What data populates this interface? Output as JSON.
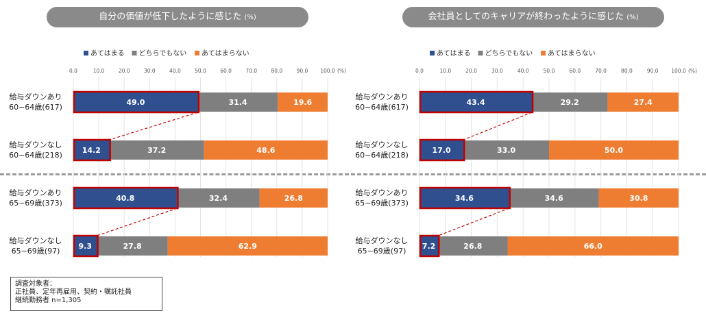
{
  "colors": {
    "agree": "#2f4f8f",
    "neutral": "#7f7f7f",
    "disagree": "#ef7d31",
    "highlight": "#c00000",
    "pill": "#8a8a8a"
  },
  "legend": [
    "あてはまる",
    "どちらでもない",
    "あてはまらない"
  ],
  "axis": {
    "ticks": [
      "0.0",
      "10.0",
      "20.0",
      "30.0",
      "40.0",
      "50.0",
      "60.0",
      "70.0",
      "80.0",
      "90.0",
      "100.0"
    ],
    "unit": "(%)"
  },
  "note": {
    "lines": [
      "調査対象者：",
      "正社員、定年再雇用、契約・嘱託社員",
      "継続勤務者 n=1,305"
    ]
  },
  "chart_data": [
    {
      "type": "bar",
      "stacked": true,
      "orientation": "horizontal",
      "title": "自分の価値が低下したように感じた",
      "title_unit": "(%)",
      "xlim": [
        0,
        100
      ],
      "categories": [
        [
          "給与ダウンあり",
          "60−64歳(617)"
        ],
        [
          "給与ダウンなし",
          "60−64歳(218)"
        ],
        [
          "給与ダウンあり",
          "65−69歳(373)"
        ],
        [
          "給与ダウンなし",
          "65−69歳(97)"
        ]
      ],
      "series": [
        {
          "name": "あてはまる",
          "values": [
            49.0,
            14.2,
            40.8,
            9.3
          ]
        },
        {
          "name": "どちらでもない",
          "values": [
            31.4,
            37.2,
            32.4,
            27.8
          ]
        },
        {
          "name": "あてはまらない",
          "values": [
            19.6,
            48.6,
            26.8,
            62.9
          ]
        }
      ],
      "labels": [
        [
          "49.0",
          "31.4",
          "19.6"
        ],
        [
          "14.2",
          "37.2",
          "48.6"
        ],
        [
          "40.8",
          "32.4",
          "26.8"
        ],
        [
          "9.3",
          "27.8",
          "62.9"
        ]
      ],
      "legend_position": "top"
    },
    {
      "type": "bar",
      "stacked": true,
      "orientation": "horizontal",
      "title": "会社員としてのキャリアが終わったように感じた",
      "title_unit": "(%)",
      "xlim": [
        0,
        100
      ],
      "categories": [
        [
          "給与ダウンあり",
          "60−64歳(617)"
        ],
        [
          "給与ダウンなし",
          "60−64歳(218)"
        ],
        [
          "給与ダウンあり",
          "65−69歳(373)"
        ],
        [
          "給与ダウンなし",
          "65−69歳(97)"
        ]
      ],
      "series": [
        {
          "name": "あてはまる",
          "values": [
            43.4,
            17.0,
            34.6,
            7.2
          ]
        },
        {
          "name": "どちらでもない",
          "values": [
            29.2,
            33.0,
            34.6,
            26.8
          ]
        },
        {
          "name": "あてはまらない",
          "values": [
            27.4,
            50.0,
            30.8,
            66.0
          ]
        }
      ],
      "labels": [
        [
          "43.4",
          "29.2",
          "27.4"
        ],
        [
          "17.0",
          "33.0",
          "50.0"
        ],
        [
          "34.6",
          "34.6",
          "30.8"
        ],
        [
          "7.2",
          "26.8",
          "66.0"
        ]
      ],
      "legend_position": "top"
    }
  ]
}
